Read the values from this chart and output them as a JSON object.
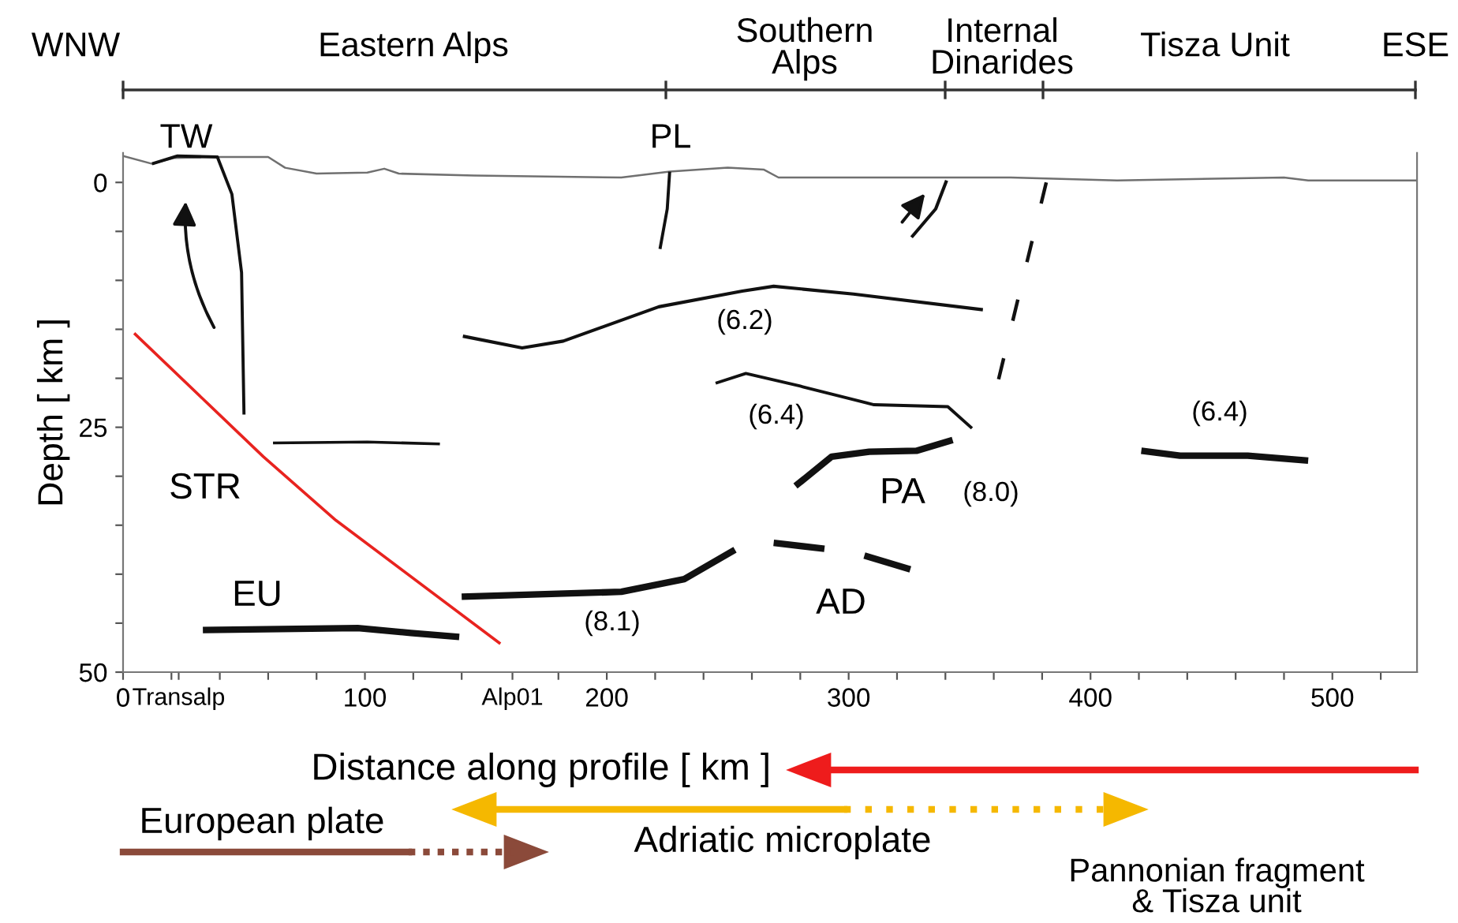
{
  "chart_data": {
    "type": "line",
    "xlabel": "Distance along profile [ km ]",
    "ylabel": "Depth [ km ]",
    "xlim": [
      0,
      535
    ],
    "ylim": [
      50,
      -3
    ],
    "xticks": [
      0,
      {
        "value": 20,
        "label": null
      },
      {
        "value": 23,
        "label": "Transalp"
      },
      {
        "value": 40,
        "label": null
      },
      {
        "value": 60,
        "label": null
      },
      {
        "value": 80,
        "label": null
      },
      100,
      {
        "value": 120,
        "label": null
      },
      {
        "value": 140,
        "label": null
      },
      {
        "value": 161,
        "label": "Alp01"
      },
      {
        "value": 180,
        "label": null
      },
      200,
      {
        "value": 220,
        "label": null
      },
      {
        "value": 240,
        "label": null
      },
      {
        "value": 260,
        "label": null
      },
      {
        "value": 280,
        "label": null
      },
      300,
      {
        "value": 320,
        "label": null
      },
      {
        "value": 340,
        "label": null
      },
      {
        "value": 360,
        "label": null
      },
      {
        "value": 380,
        "label": null
      },
      400,
      {
        "value": 420,
        "label": null
      },
      {
        "value": 440,
        "label": null
      },
      {
        "value": 460,
        "label": null
      },
      {
        "value": 480,
        "label": null
      },
      500,
      {
        "value": 520,
        "label": null
      }
    ],
    "yticks": [
      0,
      {
        "value": 5,
        "label": null
      },
      {
        "value": 10,
        "label": null
      },
      {
        "value": 15,
        "label": null
      },
      {
        "value": 20,
        "label": null
      },
      25,
      {
        "value": 30,
        "label": null
      },
      {
        "value": 35,
        "label": null
      },
      {
        "value": 40,
        "label": null
      },
      {
        "value": 45,
        "label": null
      },
      50
    ],
    "grid": false,
    "legend": false,
    "marker": "none",
    "series": [
      {
        "color": "#707070",
        "x": [
          0,
          12,
          21,
          40.5,
          60,
          67,
          80,
          101,
          108,
          114,
          145,
          206,
          226,
          250,
          265,
          271,
          367,
          411,
          480,
          490,
          535
        ],
        "values": [
          -2.7,
          -1.9,
          -2.5,
          -2.6,
          -2.6,
          -1.5,
          -0.9,
          -1.0,
          -1.4,
          -0.9,
          -0.7,
          -0.5,
          -1.1,
          -1.5,
          -1.3,
          -0.5,
          -0.5,
          -0.2,
          -0.5,
          -0.2,
          -0.2
        ]
      },
      {
        "color": "#111111",
        "x": [
          12,
          22.5,
          39,
          45,
          49,
          50
        ],
        "values": [
          -1.9,
          -2.7,
          -2.6,
          1.2,
          9.2,
          23.7
        ]
      },
      {
        "color": "#111111",
        "x": [
          226,
          225,
          222
        ],
        "values": [
          -1.1,
          2.7,
          6.8
        ]
      },
      {
        "color": "#e8231f",
        "x": [
          4.6,
          58,
          88,
          156
        ],
        "values": [
          15.4,
          28,
          34.5,
          47.1
        ]
      },
      {
        "color": "#111111",
        "x": [
          62,
          101,
          131
        ],
        "values": [
          26.6,
          26.5,
          26.7
        ]
      },
      {
        "color": "#111111",
        "x": [
          33,
          97,
          119,
          139
        ],
        "values": [
          45.7,
          45.5,
          46.0,
          46.4
        ]
      },
      {
        "color": "#111111",
        "x": [
          140,
          206,
          232,
          253
        ],
        "values": [
          42.3,
          41.8,
          40.5,
          37.5
        ]
      },
      {
        "color": "#111111",
        "x": [
          269,
          290,
          298,
          306.5,
          325.5
        ],
        "values": [
          36.8,
          37.4,
          null,
          38.1,
          39.5
        ]
      },
      {
        "color": "#111111",
        "x": [
          140.5,
          165,
          182,
          221.5,
          256,
          269,
          302,
          355.5
        ],
        "values": [
          15.7,
          16.9,
          16.2,
          12.7,
          11.1,
          10.6,
          11.4,
          13.0
        ]
      },
      {
        "color": "#111111",
        "x": [
          245,
          257.5,
          280,
          310.5,
          341,
          351
        ],
        "values": [
          20.5,
          19.5,
          20.8,
          22.7,
          22.9,
          25.1
        ]
      },
      {
        "color": "#111111",
        "x": [
          278,
          293,
          308.5,
          328,
          343
        ],
        "values": [
          31.0,
          28.0,
          27.5,
          27.4,
          26.3
        ]
      },
      {
        "color": "#111111",
        "x": [
          421,
          437,
          465,
          490
        ],
        "values": [
          27.4,
          27.9,
          27.9,
          28.4
        ]
      },
      {
        "color": "#111111",
        "x": [
          381.7,
          362
        ],
        "values": [
          0,
          20.1
        ],
        "line_style": "dashed"
      },
      {
        "color": "#111111",
        "x": [
          340.5,
          336,
          326
        ],
        "values": [
          -0.2,
          2.7,
          5.6
        ]
      }
    ],
    "annotations": [
      "WNW",
      "Eastern Alps",
      "Southern\nAlps",
      "Internal\nDinarides",
      "Tisza Unit",
      "ESE",
      "TW",
      "PL",
      "STR",
      "EU",
      "(8.1)",
      "(6.2)",
      "(6.4)",
      "PA",
      "(8.0)",
      "AD",
      "(6.4)",
      "European plate",
      "Adriatic microplate",
      "Pannonian fragment\n& Tisza unit"
    ]
  }
}
